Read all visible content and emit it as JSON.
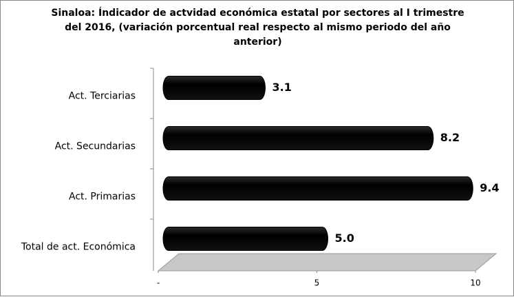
{
  "chart_data": {
    "type": "bar",
    "orientation": "horizontal",
    "title": "Sinaloa: Índicador de actvidad económica  estatal por sectores al I trimestre del 2016, (variación  porcentual real respecto al mismo periodo del año anterior)",
    "categories": [
      "Act. Terciarias",
      "Act. Secundarias",
      "Act. Primarias",
      "Total de act. Económica"
    ],
    "values": [
      3.1,
      8.2,
      9.4,
      5.0
    ],
    "value_labels": [
      "3.1",
      "8.2",
      "9.4",
      "5.0"
    ],
    "color": "#000000",
    "xlim": [
      0,
      10
    ],
    "xticks": [
      {
        "value": 0,
        "label": "-"
      },
      5,
      10
    ],
    "grid": false
  }
}
